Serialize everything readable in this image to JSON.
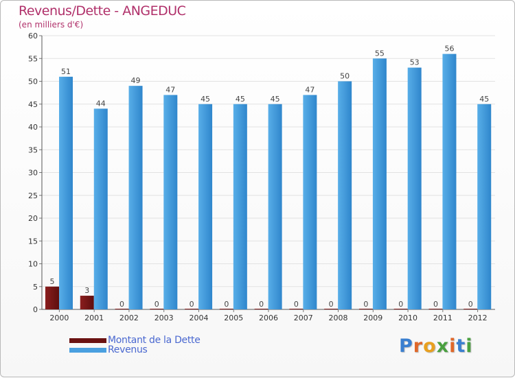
{
  "header": {
    "title": "Revenus/Dette - ANGEDUC",
    "subtitle": "(en milliers d'€)"
  },
  "colors": {
    "debt": "#7a1a1a",
    "revenue": "#3d96d8",
    "title": "#b0306a"
  },
  "legend": {
    "debt_label": "Montant de la Dette",
    "revenue_label": "Revenus"
  },
  "logo": {
    "text": "Proxiti",
    "icon": "proxiti-logo"
  },
  "chart_data": {
    "type": "bar",
    "title": "Revenus/Dette - ANGEDUC",
    "subtitle": "(en milliers d'€)",
    "xlabel": "",
    "ylabel": "",
    "ylim": [
      0,
      60
    ],
    "yticks": [
      0,
      5,
      10,
      15,
      20,
      25,
      30,
      35,
      40,
      45,
      50,
      55,
      60
    ],
    "grid": true,
    "legend_position": "bottom-left",
    "categories": [
      "2000",
      "2001",
      "2002",
      "2003",
      "2004",
      "2005",
      "2006",
      "2007",
      "2008",
      "2009",
      "2010",
      "2011",
      "2012"
    ],
    "series": [
      {
        "name": "Montant de la Dette",
        "values": [
          5,
          3,
          0,
          0,
          0,
          0,
          0,
          0,
          0,
          0,
          0,
          0,
          0
        ]
      },
      {
        "name": "Revenus",
        "values": [
          51,
          44,
          49,
          47,
          45,
          45,
          45,
          47,
          50,
          55,
          53,
          56,
          45
        ]
      }
    ]
  }
}
